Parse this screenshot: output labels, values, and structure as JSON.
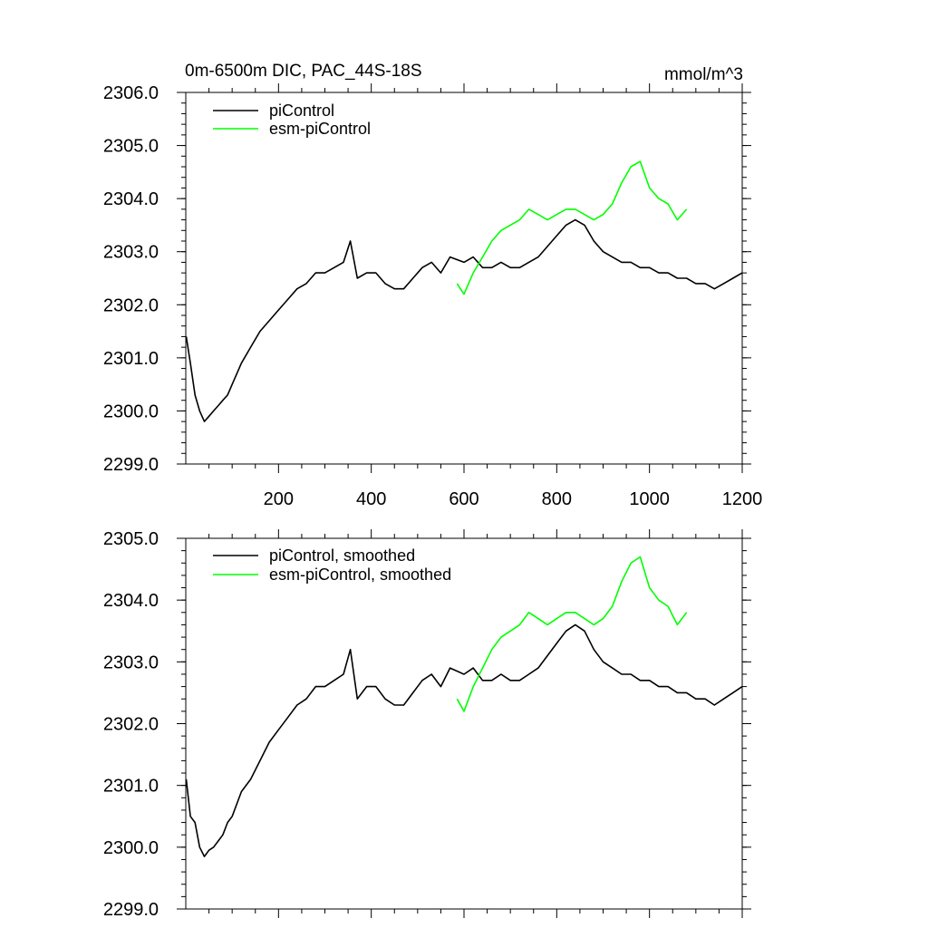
{
  "chart_data": [
    {
      "type": "line",
      "title": "0m-6500m DIC, PAC_44S-18S",
      "units": "mmol/m^3",
      "xlabel": "",
      "ylabel": "",
      "xlim": [
        0,
        1200
      ],
      "ylim": [
        2299.0,
        2306.0
      ],
      "xticks": [
        200,
        400,
        600,
        800,
        1000,
        1200
      ],
      "xtick_labels": [
        "200",
        "400",
        "600",
        "800",
        "1000",
        "1200"
      ],
      "yticks": [
        2299.0,
        2300.0,
        2301.0,
        2302.0,
        2303.0,
        2304.0,
        2305.0,
        2306.0
      ],
      "ytick_labels": [
        "2299.0",
        "2300.0",
        "2301.0",
        "2302.0",
        "2303.0",
        "2304.0",
        "2305.0",
        "2306.0"
      ],
      "legend_position": "top-left",
      "grid": false,
      "series": [
        {
          "name": "piControl",
          "color": "#000000",
          "x": [
            1,
            10,
            20,
            30,
            40,
            50,
            60,
            70,
            80,
            90,
            100,
            120,
            140,
            160,
            180,
            200,
            220,
            240,
            260,
            280,
            300,
            320,
            340,
            355,
            370,
            390,
            410,
            430,
            450,
            470,
            490,
            510,
            530,
            550,
            570,
            600,
            620,
            640,
            660,
            680,
            700,
            720,
            740,
            760,
            780,
            800,
            820,
            840,
            860,
            880,
            900,
            920,
            940,
            960,
            980,
            1000,
            1020,
            1040,
            1060,
            1080,
            1100,
            1120,
            1140,
            1160,
            1180,
            1200
          ],
          "y": [
            2301.4,
            2300.9,
            2300.3,
            2300.0,
            2299.8,
            2299.9,
            2300.0,
            2300.1,
            2300.2,
            2300.3,
            2300.5,
            2300.9,
            2301.2,
            2301.5,
            2301.7,
            2301.9,
            2302.1,
            2302.3,
            2302.4,
            2302.6,
            2302.6,
            2302.7,
            2302.8,
            2303.2,
            2302.5,
            2302.6,
            2302.6,
            2302.4,
            2302.3,
            2302.3,
            2302.5,
            2302.7,
            2302.8,
            2302.6,
            2302.9,
            2302.8,
            2302.9,
            2302.7,
            2302.7,
            2302.8,
            2302.7,
            2302.7,
            2302.8,
            2302.9,
            2303.1,
            2303.3,
            2303.5,
            2303.6,
            2303.5,
            2303.2,
            2303.0,
            2302.9,
            2302.8,
            2302.8,
            2302.7,
            2302.7,
            2302.6,
            2302.6,
            2302.5,
            2302.5,
            2302.4,
            2302.4,
            2302.3,
            2302.4,
            2302.5,
            2302.6
          ]
        },
        {
          "name": "esm-piControl",
          "color": "#00ff00",
          "x": [
            585,
            600,
            620,
            640,
            660,
            680,
            700,
            720,
            740,
            760,
            780,
            800,
            820,
            840,
            860,
            880,
            900,
            920,
            940,
            960,
            980,
            1000,
            1020,
            1040,
            1060,
            1080
          ],
          "y": [
            2302.4,
            2302.2,
            2302.6,
            2302.9,
            2303.2,
            2303.4,
            2303.5,
            2303.6,
            2303.8,
            2303.7,
            2303.6,
            2303.7,
            2303.8,
            2303.8,
            2303.7,
            2303.6,
            2303.7,
            2303.9,
            2304.3,
            2304.6,
            2304.7,
            2304.2,
            2304.0,
            2303.9,
            2303.6,
            2303.8
          ]
        }
      ]
    },
    {
      "type": "line",
      "title": "",
      "xlabel": "",
      "ylabel": "",
      "xlim": [
        0,
        1200
      ],
      "ylim": [
        2299.0,
        2305.0
      ],
      "yticks": [
        2299.0,
        2300.0,
        2301.0,
        2302.0,
        2303.0,
        2304.0,
        2305.0
      ],
      "ytick_labels": [
        "2299.0",
        "2300.0",
        "2301.0",
        "2302.0",
        "2303.0",
        "2304.0",
        "2305.0"
      ],
      "legend_position": "top-left",
      "grid": false,
      "series": [
        {
          "name": "piControl, smoothed",
          "color": "#000000",
          "x": [
            1,
            10,
            20,
            30,
            40,
            50,
            60,
            70,
            80,
            90,
            100,
            120,
            140,
            160,
            180,
            200,
            220,
            240,
            260,
            280,
            300,
            320,
            340,
            355,
            370,
            390,
            410,
            430,
            450,
            470,
            490,
            510,
            530,
            550,
            570,
            600,
            620,
            640,
            660,
            680,
            700,
            720,
            740,
            760,
            780,
            800,
            820,
            840,
            860,
            880,
            900,
            920,
            940,
            960,
            980,
            1000,
            1020,
            1040,
            1060,
            1080,
            1100,
            1120,
            1140,
            1160,
            1180,
            1200
          ],
          "y": [
            2301.1,
            2300.5,
            2300.4,
            2300.0,
            2299.85,
            2299.95,
            2300.0,
            2300.1,
            2300.2,
            2300.4,
            2300.5,
            2300.9,
            2301.1,
            2301.4,
            2301.7,
            2301.9,
            2302.1,
            2302.3,
            2302.4,
            2302.6,
            2302.6,
            2302.7,
            2302.8,
            2303.2,
            2302.4,
            2302.6,
            2302.6,
            2302.4,
            2302.3,
            2302.3,
            2302.5,
            2302.7,
            2302.8,
            2302.6,
            2302.9,
            2302.8,
            2302.9,
            2302.7,
            2302.7,
            2302.8,
            2302.7,
            2302.7,
            2302.8,
            2302.9,
            2303.1,
            2303.3,
            2303.5,
            2303.6,
            2303.5,
            2303.2,
            2303.0,
            2302.9,
            2302.8,
            2302.8,
            2302.7,
            2302.7,
            2302.6,
            2302.6,
            2302.5,
            2302.5,
            2302.4,
            2302.4,
            2302.3,
            2302.4,
            2302.5,
            2302.6
          ]
        },
        {
          "name": "esm-piControl, smoothed",
          "color": "#00ff00",
          "x": [
            585,
            600,
            620,
            640,
            660,
            680,
            700,
            720,
            740,
            760,
            780,
            800,
            820,
            840,
            860,
            880,
            900,
            920,
            940,
            960,
            980,
            1000,
            1020,
            1040,
            1060,
            1080
          ],
          "y": [
            2302.4,
            2302.2,
            2302.6,
            2302.9,
            2303.2,
            2303.4,
            2303.5,
            2303.6,
            2303.8,
            2303.7,
            2303.6,
            2303.7,
            2303.8,
            2303.8,
            2303.7,
            2303.6,
            2303.7,
            2303.9,
            2304.3,
            2304.6,
            2304.7,
            2304.2,
            2304.0,
            2303.9,
            2303.6,
            2303.8
          ]
        }
      ]
    }
  ]
}
